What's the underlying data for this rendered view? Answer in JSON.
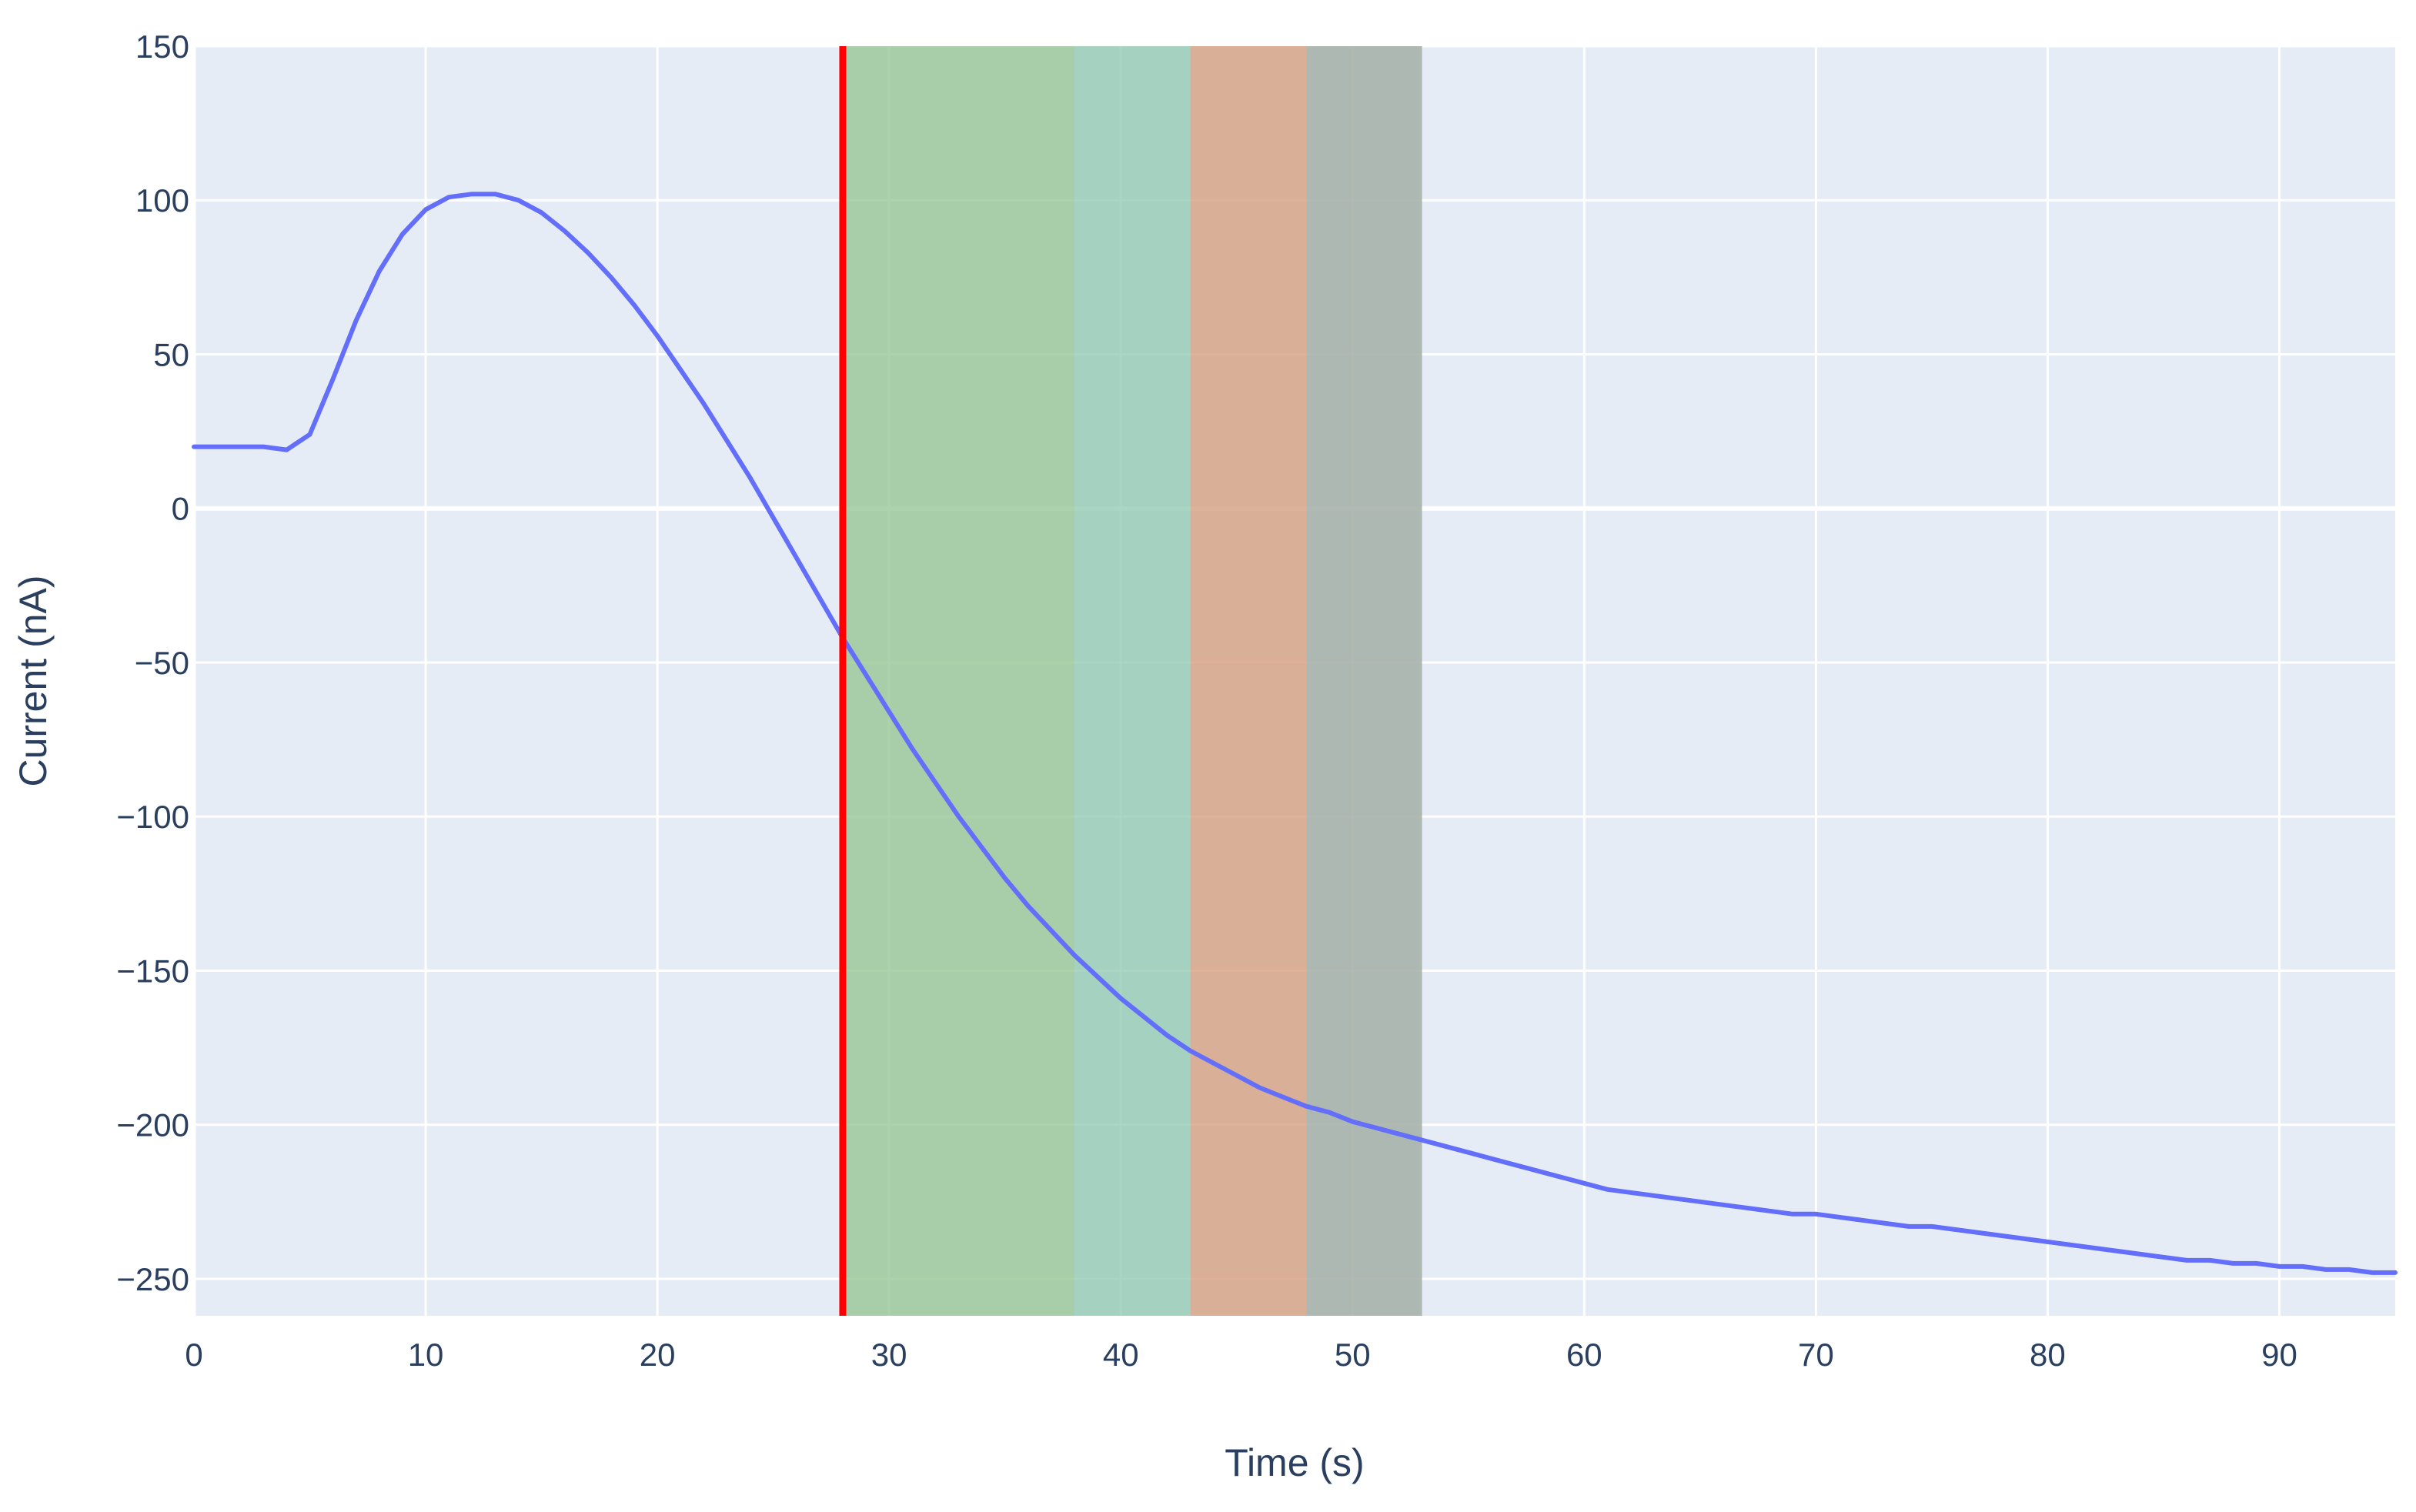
{
  "chart_data": {
    "type": "line",
    "title": "",
    "xlabel": "Time (s)",
    "ylabel": "Current (nA)",
    "xlim": [
      0,
      95
    ],
    "ylim": [
      -262,
      150
    ],
    "grid": true,
    "legend": "none",
    "x_ticks": [
      0,
      10,
      20,
      30,
      40,
      50,
      60,
      70,
      80,
      90
    ],
    "x_tick_labels": [
      "0",
      "10",
      "20",
      "30",
      "40",
      "50",
      "60",
      "70",
      "80",
      "90"
    ],
    "y_ticks": [
      150,
      100,
      50,
      0,
      -50,
      -100,
      -150,
      -200,
      -250
    ],
    "y_tick_labels": [
      "150",
      "100",
      "50",
      "0",
      "−50",
      "−100",
      "−150",
      "−200",
      "−250"
    ],
    "series": [
      {
        "color": "#636efa",
        "x": [
          0,
          1,
          2,
          3,
          4,
          5,
          6,
          7,
          8,
          9,
          10,
          11,
          12,
          13,
          14,
          15,
          16,
          17,
          18,
          19,
          20,
          21,
          22,
          23,
          24,
          25,
          26,
          27,
          28,
          29,
          30,
          31,
          32,
          33,
          34,
          35,
          36,
          37,
          38,
          39,
          40,
          41,
          42,
          43,
          44,
          45,
          46,
          47,
          48,
          49,
          50,
          51,
          52,
          53,
          54,
          55,
          56,
          57,
          58,
          59,
          60,
          61,
          62,
          63,
          64,
          65,
          66,
          67,
          68,
          69,
          70,
          71,
          72,
          73,
          74,
          75,
          76,
          77,
          78,
          79,
          80,
          81,
          82,
          83,
          84,
          85,
          86,
          87,
          88,
          89,
          90,
          91,
          92,
          93,
          94,
          95
        ],
        "y": [
          20,
          20,
          20,
          20,
          19,
          24,
          42,
          61,
          77,
          89,
          97,
          101,
          102,
          102,
          100,
          96,
          90,
          83,
          75,
          66,
          56,
          45,
          34,
          22,
          10,
          -3,
          -16,
          -29,
          -42,
          -54,
          -66,
          -78,
          -89,
          -100,
          -110,
          -120,
          -129,
          -137,
          -145,
          -152,
          -159,
          -165,
          -171,
          -176,
          -180,
          -184,
          -188,
          -191,
          -194,
          -196,
          -199,
          -201,
          -203,
          -205,
          -207,
          -209,
          -211,
          -213,
          -215,
          -217,
          -219,
          -221,
          -222,
          -223,
          -224,
          -225,
          -226,
          -227,
          -228,
          -229,
          -229,
          -230,
          -231,
          -232,
          -233,
          -233,
          -234,
          -235,
          -236,
          -237,
          -238,
          -239,
          -240,
          -241,
          -242,
          -243,
          -244,
          -244,
          -245,
          -245,
          -246,
          -246,
          -247,
          -247,
          -248,
          -248
        ]
      }
    ],
    "shaded_regions": [
      {
        "x0": 28,
        "x1": 38,
        "color": "#97c796",
        "opacity": 0.8
      },
      {
        "x0": 38,
        "x1": 43,
        "color": "#93cbb3",
        "opacity": 0.8
      },
      {
        "x0": 43,
        "x1": 48,
        "color": "#d8a486",
        "opacity": 0.85
      },
      {
        "x0": 48,
        "x1": 53,
        "color": "#a7b2ab",
        "opacity": 0.9
      }
    ],
    "vertical_line": {
      "x": 28,
      "color": "#ff0000"
    }
  }
}
